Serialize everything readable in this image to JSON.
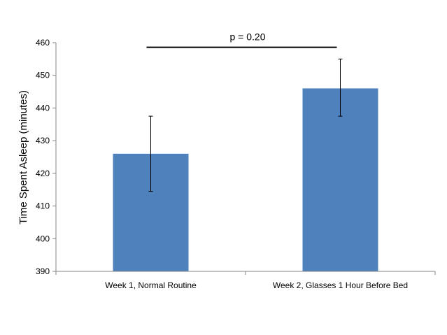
{
  "chart_data": {
    "type": "bar",
    "title": "",
    "xlabel": "",
    "ylabel": "Time Spent Asleep (minutes)",
    "categories": [
      "Week 1, Normal Routine",
      "Week 2, Glasses 1 Hour Before Bed"
    ],
    "values": [
      426,
      446
    ],
    "error_low": [
      414.5,
      437.5
    ],
    "error_high": [
      437.5,
      455
    ],
    "ylim": [
      390,
      460
    ],
    "yticks": [
      390,
      400,
      410,
      420,
      430,
      440,
      450,
      460
    ],
    "grid": false,
    "legend": "none",
    "bar_color": "#4F81BD",
    "annotation": {
      "text": "p = 0.20",
      "y": 459
    }
  }
}
